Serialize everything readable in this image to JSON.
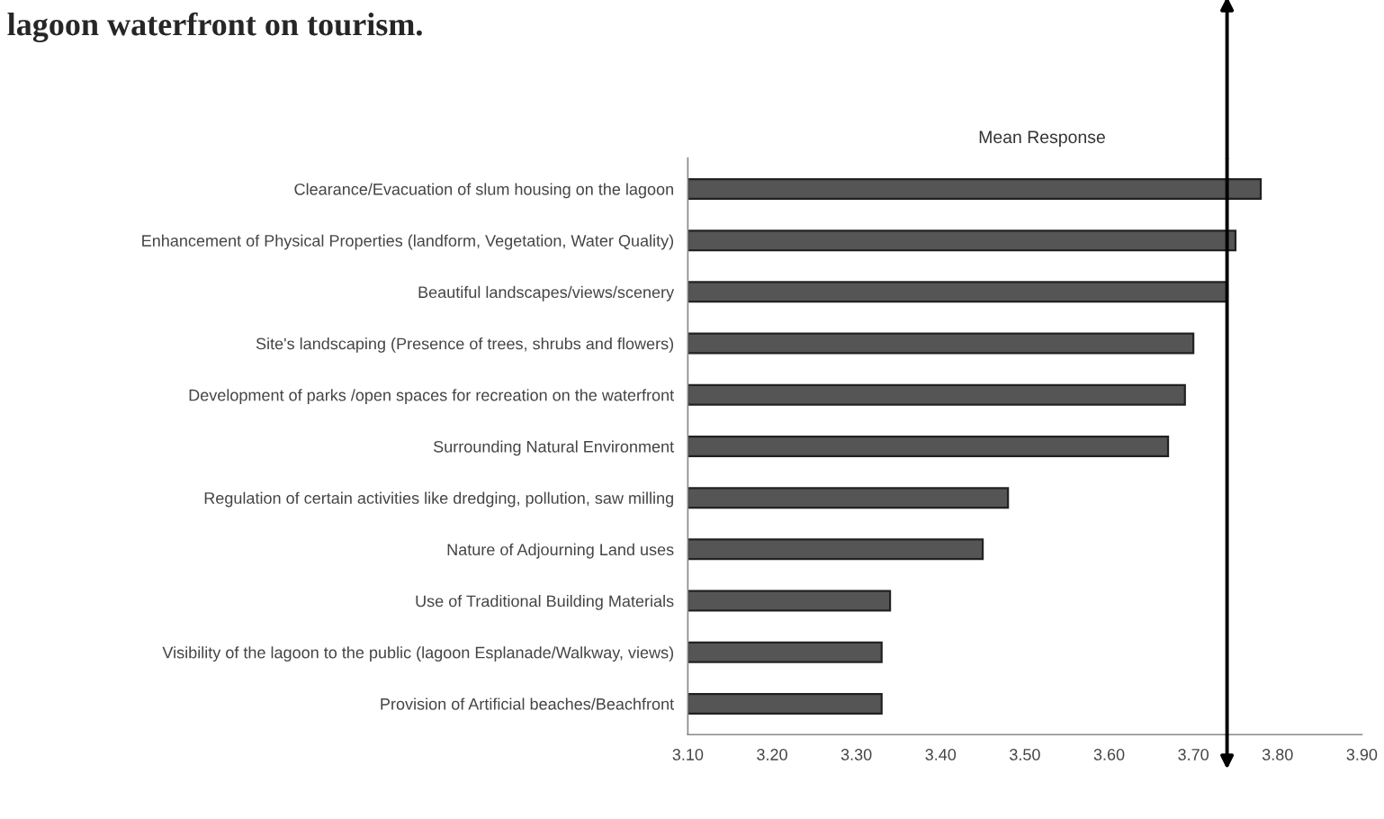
{
  "chart_data": {
    "type": "bar",
    "orientation": "horizontal",
    "title": "Mean Response",
    "annotations": [
      "lagoon waterfront on tourism."
    ],
    "categories": [
      "Clearance/Evacuation of slum housing on the lagoon",
      "Enhancement of Physical Properties (landform, Vegetation, Water Quality)",
      "Beautiful landscapes/views/scenery",
      "Site's landscaping (Presence of trees, shrubs and flowers)",
      "Development of parks /open spaces for recreation on the waterfront",
      "Surrounding Natural Environment",
      "Regulation of certain activities like dredging, pollution, saw milling",
      "Nature of Adjourning Land uses",
      "Use of Traditional Building Materials",
      "Visibility of the lagoon to the public (lagoon Esplanade/Walkway, views)",
      "Provision of Artificial beaches/Beachfront"
    ],
    "values": [
      3.78,
      3.75,
      3.74,
      3.7,
      3.69,
      3.67,
      3.48,
      3.45,
      3.34,
      3.33,
      3.33
    ],
    "color": "#555555",
    "xlim": [
      3.1,
      3.9
    ],
    "xticks": [
      {
        "value": 3.1,
        "label": "3.10"
      },
      {
        "value": 3.2,
        "label": "3.20"
      },
      {
        "value": 3.3,
        "label": "3.30"
      },
      {
        "value": 3.4,
        "label": "3.40"
      },
      {
        "value": 3.5,
        "label": "3.50"
      },
      {
        "value": 3.6,
        "label": "3.60"
      },
      {
        "value": 3.7,
        "label": "3.70"
      },
      {
        "value": 3.8,
        "label": "3.80"
      },
      {
        "value": 3.9,
        "label": "3.90"
      }
    ],
    "ref_lines": [
      {
        "axis": "x",
        "value": 3.74,
        "color": "#000000"
      }
    ],
    "grid": false,
    "legend": false
  }
}
